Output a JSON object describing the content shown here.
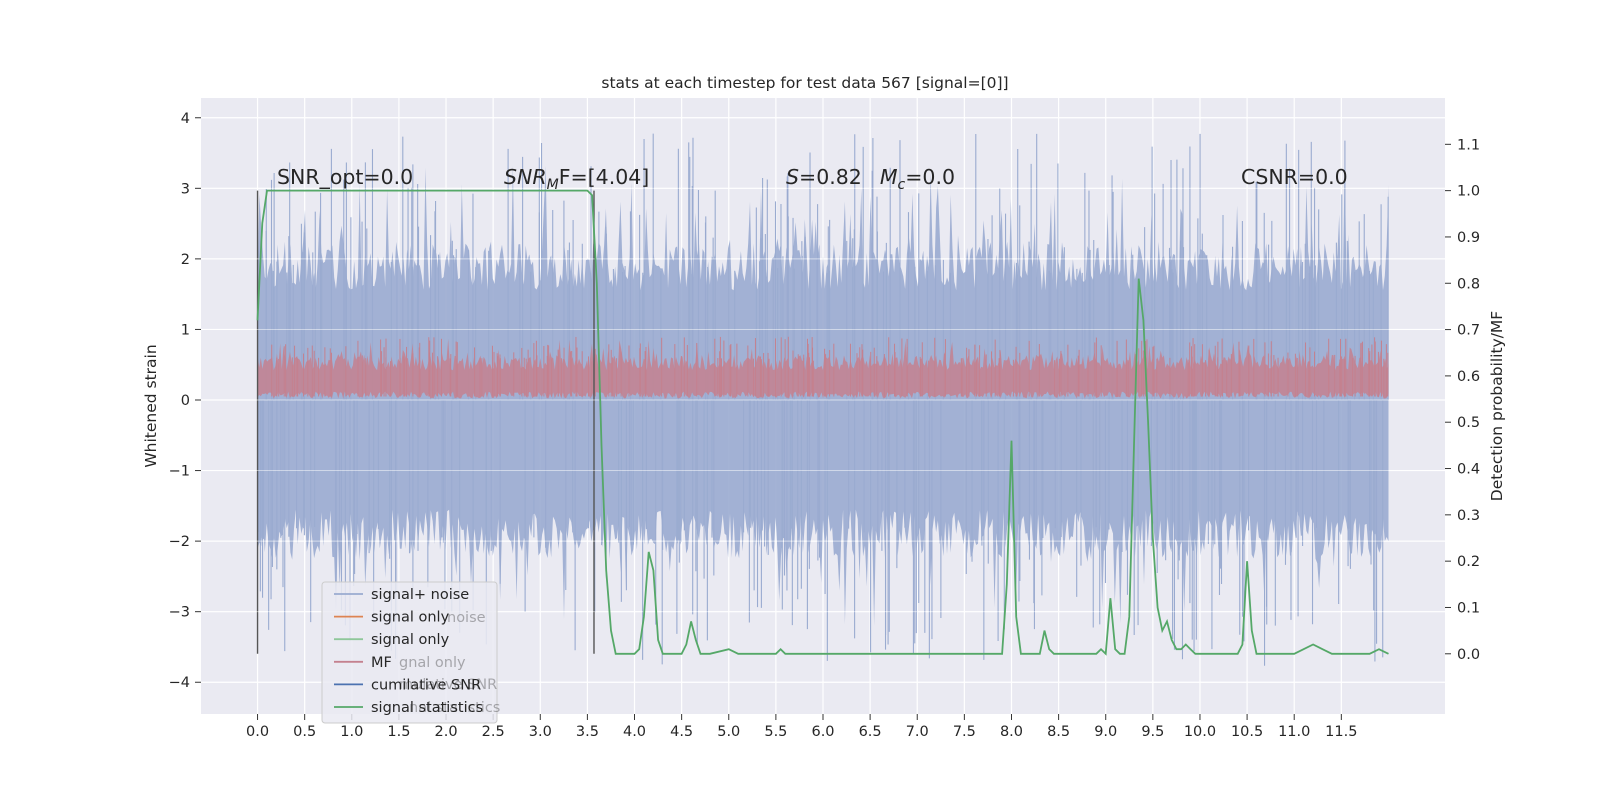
{
  "chart_data": {
    "type": "line",
    "title": "stats at each timestep for test data 567 [signal=[0]]",
    "xlabel": "",
    "ylabel": "Whitened strain",
    "y2label": "Detection probability/MF",
    "xlim": [
      -0.6,
      12.6
    ],
    "ylim": [
      -4.45,
      4.28
    ],
    "y2lim": [
      -0.13,
      1.2
    ],
    "x_ticks": [
      "0.0",
      "0.5",
      "1.0",
      "1.5",
      "2.0",
      "2.5",
      "3.0",
      "3.5",
      "4.0",
      "4.5",
      "5.0",
      "5.5",
      "6.0",
      "6.5",
      "7.0",
      "7.5",
      "8.0",
      "8.5",
      "9.0",
      "9.5",
      "10.0",
      "10.5",
      "11.0",
      "11.5"
    ],
    "y_ticks": [
      4,
      3,
      2,
      1,
      0,
      -1,
      -2,
      -3,
      -4
    ],
    "y_tick_labels": [
      "4",
      "3",
      "2",
      "1",
      "0",
      "−1",
      "−2",
      "−3",
      "−4"
    ],
    "y2_ticks": [
      "0.0",
      "0.1",
      "0.2",
      "0.3",
      "0.4",
      "0.5",
      "0.6",
      "0.7",
      "0.8",
      "0.9",
      "1.0",
      "1.1"
    ],
    "grid": true,
    "legend_position": "lower-left",
    "colors": {
      "background": "#eaeaf2",
      "signal_noise": "#9aabd0",
      "mf": "#c4818f",
      "statistic": "#55a868",
      "grid": "#ffffff",
      "vline": "#555555"
    },
    "annotations": {
      "snr_opt": "SNR_opt=0.0",
      "snr_mf_prefix": "SNR",
      "snr_mf_sub": "M",
      "snr_mf_suffix": "F=[4.04]",
      "s_label": "S",
      "s_value": "=0.82",
      "mc_label": "M",
      "mc_sub": "c",
      "mc_value": "=0.0",
      "csnr": "CSNR=0.0"
    },
    "vlines": [
      0.0,
      3.57
    ],
    "noise_band": {
      "x_start": 0.0,
      "x_end": 12.0,
      "typical_range": [
        -2.5,
        2.5
      ],
      "max": 3.8,
      "min": -3.9
    },
    "mf_band": {
      "x_start": 0.0,
      "x_end": 12.0,
      "range": [
        0.0,
        0.9
      ]
    },
    "legend_entries": [
      {
        "label": "signal+ noise",
        "color": "#9aabd0"
      },
      {
        "label": "signal only",
        "color": "#dd8452"
      },
      {
        "label": "signal only",
        "color": "#8fc79a"
      },
      {
        "label": "MF",
        "color": "#c4818f"
      },
      {
        "label": "cumilative SNR",
        "color": "#4c72b0"
      },
      {
        "label": "signal statistics",
        "color": "#55a868"
      }
    ],
    "legend_ghosts": [
      "noise",
      "gnal only",
      "mulative SNR",
      "nal statistics"
    ],
    "series": [
      {
        "name": "signal statistics",
        "x": [
          0.0,
          0.05,
          0.1,
          0.2,
          0.5,
          1.0,
          1.5,
          2.0,
          2.5,
          3.0,
          3.3,
          3.5,
          3.55,
          3.6,
          3.65,
          3.7,
          3.75,
          3.8,
          3.85,
          3.9,
          4.0,
          4.05,
          4.1,
          4.15,
          4.2,
          4.25,
          4.3,
          4.4,
          4.5,
          4.55,
          4.6,
          4.65,
          4.7,
          4.8,
          5.0,
          5.1,
          5.3,
          5.5,
          5.55,
          5.6,
          6.0,
          6.5,
          7.0,
          7.5,
          7.9,
          7.95,
          8.0,
          8.05,
          8.1,
          8.2,
          8.3,
          8.35,
          8.4,
          8.45,
          8.5,
          8.6,
          8.7,
          8.8,
          8.9,
          8.95,
          9.0,
          9.05,
          9.1,
          9.15,
          9.2,
          9.25,
          9.3,
          9.35,
          9.4,
          9.45,
          9.5,
          9.55,
          9.6,
          9.65,
          9.7,
          9.75,
          9.8,
          9.85,
          9.9,
          9.95,
          10.0,
          10.1,
          10.2,
          10.3,
          10.4,
          10.45,
          10.5,
          10.55,
          10.6,
          10.65,
          10.7,
          10.8,
          10.9,
          11.0,
          11.1,
          11.2,
          11.3,
          11.4,
          11.5,
          11.6,
          11.8,
          11.9,
          12.0
        ],
        "y": [
          0.72,
          0.93,
          1.0,
          1.0,
          1.0,
          1.0,
          1.0,
          1.0,
          1.0,
          1.0,
          1.0,
          1.0,
          0.99,
          0.8,
          0.45,
          0.18,
          0.05,
          0.0,
          0.0,
          0.0,
          0.0,
          0.01,
          0.08,
          0.22,
          0.18,
          0.03,
          0.0,
          0.0,
          0.0,
          0.02,
          0.07,
          0.03,
          0.0,
          0.0,
          0.01,
          0.0,
          0.0,
          0.0,
          0.01,
          0.0,
          0.0,
          0.0,
          0.0,
          0.0,
          0.0,
          0.15,
          0.46,
          0.08,
          0.0,
          0.0,
          0.0,
          0.05,
          0.01,
          0.0,
          0.0,
          0.0,
          0.0,
          0.0,
          0.0,
          0.01,
          0.0,
          0.12,
          0.01,
          0.0,
          0.0,
          0.08,
          0.45,
          0.81,
          0.72,
          0.5,
          0.25,
          0.1,
          0.05,
          0.07,
          0.03,
          0.01,
          0.01,
          0.02,
          0.01,
          0.0,
          0.0,
          0.0,
          0.0,
          0.0,
          0.0,
          0.02,
          0.2,
          0.05,
          0.0,
          0.0,
          0.0,
          0.0,
          0.0,
          0.0,
          0.01,
          0.02,
          0.01,
          0.0,
          0.0,
          0.0,
          0.0,
          0.01,
          0.0
        ]
      }
    ]
  }
}
